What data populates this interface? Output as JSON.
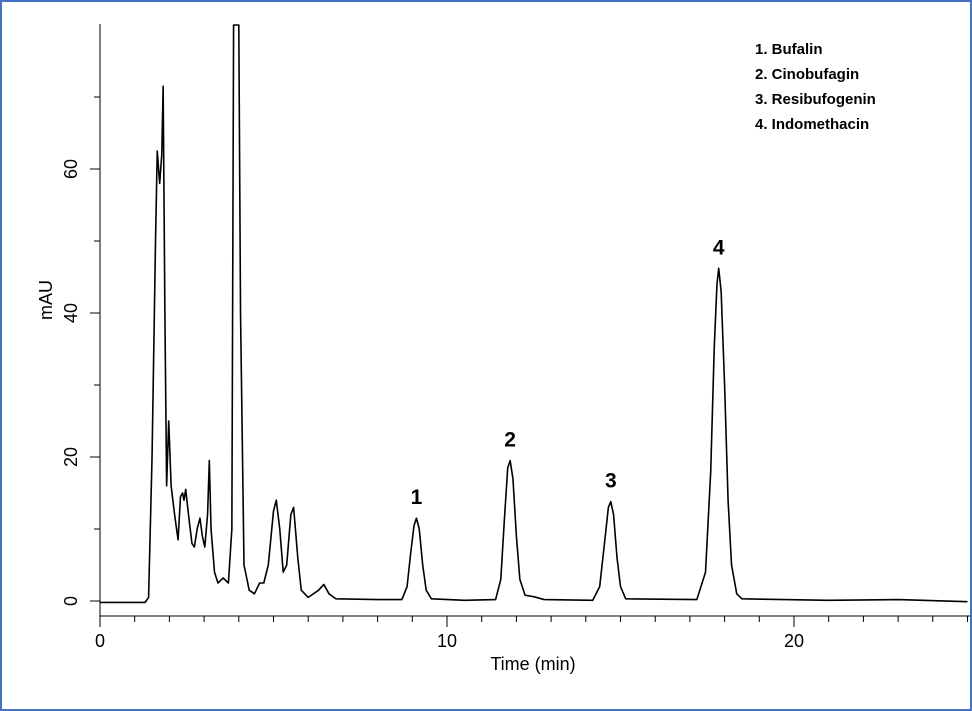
{
  "chart_data": {
    "type": "line",
    "xlabel": "Time (min)",
    "ylabel": "mAU",
    "xlim": [
      0,
      25
    ],
    "ylim": [
      -2,
      80
    ],
    "xticks": [
      0,
      10,
      20
    ],
    "xminorticks": [
      1,
      2,
      3,
      4,
      5,
      6,
      7,
      8,
      9,
      11,
      12,
      13,
      14,
      15,
      16,
      17,
      18,
      19,
      21,
      22,
      23,
      24,
      25
    ],
    "yticks": [
      0,
      20,
      40,
      60
    ],
    "yminorticks": [
      10,
      30,
      50,
      70
    ],
    "color": "#000000",
    "x": [
      0,
      1.3,
      1.4,
      1.5,
      1.6,
      1.65,
      1.72,
      1.78,
      1.82,
      1.87,
      1.92,
      1.98,
      2.05,
      2.15,
      2.25,
      2.32,
      2.38,
      2.42,
      2.47,
      2.55,
      2.65,
      2.72,
      2.8,
      2.88,
      2.95,
      3.02,
      3.1,
      3.15,
      3.2,
      3.3,
      3.4,
      3.55,
      3.7,
      3.8,
      3.85,
      4.0,
      4.05,
      4.15,
      4.3,
      4.45,
      4.6,
      4.72,
      4.85,
      5.0,
      5.08,
      5.18,
      5.28,
      5.38,
      5.5,
      5.58,
      5.7,
      5.8,
      6.0,
      6.3,
      6.45,
      6.6,
      6.8,
      8.0,
      8.7,
      8.85,
      8.95,
      9.05,
      9.12,
      9.2,
      9.3,
      9.4,
      9.55,
      10.5,
      11.4,
      11.55,
      11.65,
      11.75,
      11.82,
      11.9,
      12.0,
      12.1,
      12.25,
      12.5,
      12.8,
      14.2,
      14.4,
      14.55,
      14.65,
      14.72,
      14.8,
      14.9,
      15.0,
      15.15,
      17.2,
      17.45,
      17.6,
      17.7,
      17.78,
      17.83,
      17.9,
      18.0,
      18.1,
      18.2,
      18.35,
      18.5,
      21,
      23,
      25
    ],
    "values": [
      -0.2,
      -0.2,
      0.5,
      20,
      50,
      62.5,
      58,
      62,
      71.5,
      40,
      16,
      25,
      16,
      12,
      8.5,
      14.5,
      15,
      14,
      15.5,
      12,
      8,
      7.5,
      10,
      11.5,
      9,
      7.5,
      12,
      19.5,
      10,
      4,
      2.5,
      3.2,
      2.5,
      10,
      80,
      80,
      40,
      5,
      1.5,
      1,
      2.5,
      2.5,
      5,
      12.5,
      14,
      10,
      4,
      5,
      12,
      13,
      6,
      1.5,
      0.5,
      1.5,
      2.3,
      1,
      0.3,
      0.2,
      0.2,
      2,
      6.5,
      10.5,
      11.5,
      10,
      5,
      1.5,
      0.3,
      0.1,
      0.2,
      3,
      11,
      18.5,
      19.5,
      17,
      9,
      3,
      0.8,
      0.6,
      0.2,
      0.1,
      2,
      8.5,
      13,
      13.8,
      12,
      6,
      2,
      0.3,
      0.2,
      4,
      18,
      35,
      44,
      46.2,
      43,
      30,
      14,
      5,
      1,
      0.3,
      0.1,
      0.2,
      -0.1
    ],
    "peaks": [
      {
        "label": "1",
        "x": 9.12,
        "y": 11.5
      },
      {
        "label": "2",
        "x": 11.82,
        "y": 19.5
      },
      {
        "label": "3",
        "x": 14.72,
        "y": 13.8
      },
      {
        "label": "4",
        "x": 17.83,
        "y": 46.2
      }
    ],
    "legend": [
      "1. Bufalin",
      "2. Cinobufagin",
      "3. Resibufogenin",
      "4. Indomethacin"
    ]
  }
}
